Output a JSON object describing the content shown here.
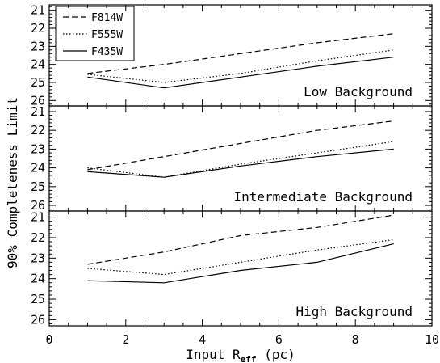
{
  "chart_data": {
    "type": "line",
    "xlabel": "Input R",
    "xlabel_subscript": "eff",
    "xlabel_suffix": " (pc)",
    "ylabel": "90% Completeness Limit",
    "xlim": [
      0,
      10
    ],
    "x_ticks": [
      0,
      2,
      4,
      6,
      8,
      10
    ],
    "ylim": [
      26.3,
      20.7
    ],
    "y_ticks": [
      21,
      22,
      23,
      24,
      25,
      26
    ],
    "y_inverted": true,
    "shared_x": true,
    "legend": {
      "placement": "top-left of top panel",
      "entries": [
        {
          "name": "F814W",
          "style": "dashed"
        },
        {
          "name": "F555W",
          "style": "dotted"
        },
        {
          "name": "F435W",
          "style": "solid"
        }
      ]
    },
    "panels": [
      {
        "label": "Low Background",
        "series": [
          {
            "name": "F814W",
            "style": "dashed",
            "x": [
              1,
              3,
              5,
              7,
              9
            ],
            "y": [
              24.5,
              24.0,
              23.4,
              22.8,
              22.3
            ]
          },
          {
            "name": "F555W",
            "style": "dotted",
            "x": [
              1,
              3,
              5,
              7,
              9
            ],
            "y": [
              24.55,
              25.0,
              24.5,
              23.8,
              23.2
            ]
          },
          {
            "name": "F435W",
            "style": "solid",
            "x": [
              1,
              3,
              5,
              7,
              9
            ],
            "y": [
              24.7,
              25.3,
              24.7,
              24.1,
              23.6
            ]
          }
        ]
      },
      {
        "label": "Intermediate Background",
        "series": [
          {
            "name": "F814W",
            "style": "dashed",
            "x": [
              1,
              3,
              5,
              7,
              9
            ],
            "y": [
              24.1,
              23.4,
              22.7,
              22.0,
              21.5
            ]
          },
          {
            "name": "F555W",
            "style": "dotted",
            "x": [
              1,
              3,
              5,
              7,
              9
            ],
            "y": [
              24.0,
              24.5,
              23.8,
              23.2,
              22.6
            ]
          },
          {
            "name": "F435W",
            "style": "solid",
            "x": [
              1,
              3,
              5,
              7,
              9
            ],
            "y": [
              24.2,
              24.5,
              23.9,
              23.4,
              23.0
            ]
          }
        ]
      },
      {
        "label": "High Background",
        "series": [
          {
            "name": "F814W",
            "style": "dashed",
            "x": [
              1,
              3,
              5,
              7,
              9
            ],
            "y": [
              23.3,
              22.7,
              21.9,
              21.5,
              20.9
            ]
          },
          {
            "name": "F555W",
            "style": "dotted",
            "x": [
              1,
              3,
              5,
              7,
              9
            ],
            "y": [
              23.5,
              23.8,
              23.2,
              22.6,
              22.1
            ]
          },
          {
            "name": "F435W",
            "style": "solid",
            "x": [
              1,
              3,
              5,
              7,
              9
            ],
            "y": [
              24.1,
              24.2,
              23.6,
              23.2,
              22.3
            ]
          }
        ]
      }
    ]
  }
}
